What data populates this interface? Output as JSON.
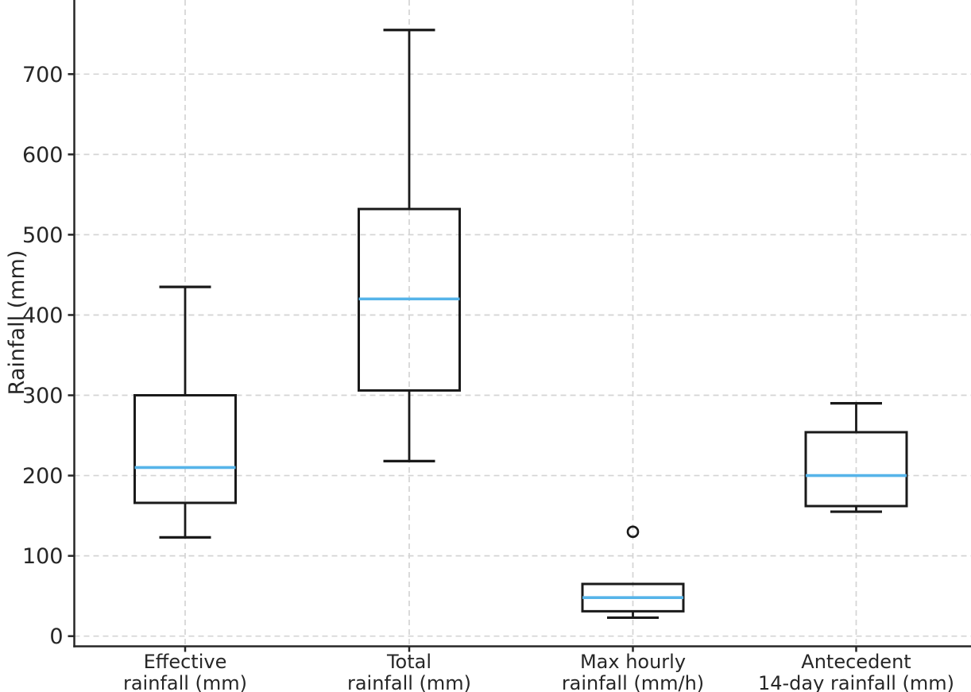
{
  "chart_data": {
    "type": "boxplot",
    "title": "",
    "xlabel": "",
    "ylabel": "Rainfall (mm)",
    "yticks": [
      0,
      100,
      200,
      300,
      400,
      500,
      600,
      700
    ],
    "ylim": [
      -13,
      792
    ],
    "grid": "both, dashed light gray",
    "legend": "none",
    "categories": [
      "Effective rainfall (mm)",
      "Total rainfall (mm)",
      "Max hourly rainfall (mm/h)",
      "Antecedent 14-day rainfall (mm)"
    ],
    "category_label_lines": [
      [
        "Effective",
        "rainfall (mm)"
      ],
      [
        "Total",
        "rainfall (mm)"
      ],
      [
        "Max hourly",
        "rainfall (mm/h)"
      ],
      [
        "Antecedent",
        "14-day rainfall (mm)"
      ]
    ],
    "boxes": [
      {
        "name": "Effective rainfall (mm)",
        "whisker_low": 123,
        "q1": 166,
        "median": 210,
        "q3": 300,
        "whisker_high": 435,
        "outliers": []
      },
      {
        "name": "Total rainfall (mm)",
        "whisker_low": 218,
        "q1": 306,
        "median": 420,
        "q3": 532,
        "whisker_high": 755,
        "outliers": []
      },
      {
        "name": "Max hourly rainfall (mm/h)",
        "whisker_low": 23,
        "q1": 31,
        "median": 48,
        "q3": 65,
        "whisker_high": 65,
        "outliers": [
          130
        ]
      },
      {
        "name": "Antecedent 14-day rainfall (mm)",
        "whisker_low": 155,
        "q1": 162,
        "median": 200,
        "q3": 254,
        "whisker_high": 290,
        "outliers": []
      }
    ],
    "colors": {
      "median_line": "#56b4e9",
      "box_edge": "#1a1a1a",
      "whisker": "#1a1a1a",
      "outlier_edge": "#1a1a1a",
      "gridline": "#d4d4d4",
      "spine": "#262626",
      "text": "#262626",
      "background": "#ffffff"
    }
  }
}
